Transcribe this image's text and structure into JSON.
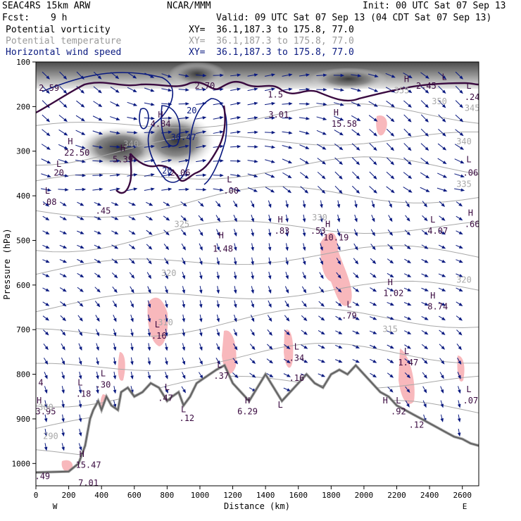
{
  "header": {
    "model": "SEAC4RS 15km ARW",
    "center": "NCAR/MMM",
    "init": "Init: 00 UTC Sat 07 Sep 13",
    "fcst_label": "Fcst:",
    "fcst_value": "9 h",
    "valid": "Valid: 09 UTC Sat 07 Sep 13 (04 CDT Sat 07 Sep 13)"
  },
  "fields": [
    {
      "name": "Potential vorticity",
      "xy": "XY=  36.1,187.3 to 175.8, 77.0",
      "color": "#000000"
    },
    {
      "name": "Potential temperature",
      "xy": "XY=  36.1,187.3 to 175.8, 77.0",
      "color": "#9a9a9a"
    },
    {
      "name": "Horizontal wind speed",
      "xy": "XY=  36.1,187.3 to 175.8, 77.0",
      "color": "#0a1a80"
    }
  ],
  "chart_data": {
    "type": "cross-section",
    "xlabel": "Distance (km)",
    "ylabel": "Pressure (hPa)",
    "x_ticks": [
      0,
      200,
      400,
      600,
      800,
      1000,
      1200,
      1400,
      1600,
      1800,
      2000,
      2200,
      2400,
      2600
    ],
    "y_ticks": [
      100,
      200,
      300,
      400,
      500,
      600,
      700,
      800,
      900,
      1000
    ],
    "xlim": [
      0,
      2700
    ],
    "ylim": [
      100,
      1050
    ],
    "x_end_labels": {
      "left": "W",
      "right": "E"
    },
    "colors": {
      "pv": "#3a0a40",
      "theta": "#a8a8a8",
      "wind": "#0a1a80",
      "pink": "#f8b8bc",
      "terrain": "#000000"
    },
    "theta_labels": [
      {
        "text": "355",
        "x": 2230,
        "p": 170
      },
      {
        "text": "350",
        "x": 2460,
        "p": 195
      },
      {
        "text": "345",
        "x": 2660,
        "p": 210
      },
      {
        "text": "340",
        "x": 2610,
        "p": 285
      },
      {
        "text": "335",
        "x": 2610,
        "p": 380
      },
      {
        "text": "330",
        "x": 1730,
        "p": 455
      },
      {
        "text": "325",
        "x": 890,
        "p": 470
      },
      {
        "text": "320",
        "x": 810,
        "p": 580
      },
      {
        "text": "320",
        "x": 2610,
        "p": 595
      },
      {
        "text": "315",
        "x": 2160,
        "p": 705
      },
      {
        "text": "310",
        "x": 790,
        "p": 690
      },
      {
        "text": "300",
        "x": 60,
        "p": 880
      },
      {
        "text": "290",
        "x": 90,
        "p": 945
      },
      {
        "text": "340",
        "x": 580,
        "p": 290
      }
    ],
    "pv_labels": [
      {
        "text": "2.59",
        "x": 80,
        "p": 165
      },
      {
        "text": "2.70",
        "x": 1030,
        "p": 160
      },
      {
        "text": "1.5",
        "x": 1460,
        "p": 180
      },
      {
        "text": "2.45",
        "x": 2380,
        "p": 160
      },
      {
        "text": "H",
        "x": 2260,
        "p": 145
      },
      {
        "text": "L",
        "x": 2490,
        "p": 140
      },
      {
        "text": ".24",
        "x": 2660,
        "p": 185
      },
      {
        "text": "L",
        "x": 2640,
        "p": 160
      },
      {
        "text": "H",
        "x": 1830,
        "p": 220
      },
      {
        "text": "15.58",
        "x": 1880,
        "p": 245
      },
      {
        "text": "3.01",
        "x": 1480,
        "p": 225
      },
      {
        "text": "4.84",
        "x": 760,
        "p": 245
      },
      {
        "text": "H",
        "x": 760,
        "p": 225
      },
      {
        "text": "5.39",
        "x": 530,
        "p": 325
      },
      {
        "text": "H",
        "x": 530,
        "p": 300
      },
      {
        "text": "22.50",
        "x": 250,
        "p": 310
      },
      {
        "text": "H",
        "x": 210,
        "p": 285
      },
      {
        "text": "20",
        "x": 140,
        "p": 355
      },
      {
        "text": "L",
        "x": 140,
        "p": 335
      },
      {
        "text": "2.06",
        "x": 880,
        "p": 355
      },
      {
        "text": "L",
        "x": 1180,
        "p": 370
      },
      {
        "text": ".00",
        "x": 1190,
        "p": 395
      },
      {
        "text": "L",
        "x": 70,
        "p": 395
      },
      {
        "text": ".08",
        "x": 80,
        "p": 420
      },
      {
        "text": ".45",
        "x": 410,
        "p": 440
      },
      {
        "text": "L",
        "x": 2640,
        "p": 325
      },
      {
        "text": ".06",
        "x": 2650,
        "p": 355
      },
      {
        "text": "H",
        "x": 1490,
        "p": 460
      },
      {
        "text": ".83",
        "x": 1500,
        "p": 485
      },
      {
        "text": ".53",
        "x": 1720,
        "p": 485
      },
      {
        "text": "H",
        "x": 1780,
        "p": 470
      },
      {
        "text": "10.19",
        "x": 1830,
        "p": 500
      },
      {
        "text": "H",
        "x": 1130,
        "p": 495
      },
      {
        "text": "1.48",
        "x": 1140,
        "p": 525
      },
      {
        "text": "L",
        "x": 2420,
        "p": 460
      },
      {
        "text": "4.07",
        "x": 2450,
        "p": 485
      },
      {
        "text": "H",
        "x": 2650,
        "p": 445
      },
      {
        "text": ".66",
        "x": 2660,
        "p": 470
      },
      {
        "text": "H",
        "x": 2160,
        "p": 600
      },
      {
        "text": "1.02",
        "x": 2180,
        "p": 625
      },
      {
        "text": "H",
        "x": 2420,
        "p": 630
      },
      {
        "text": "8.74",
        "x": 2450,
        "p": 655
      },
      {
        "text": "L",
        "x": 1910,
        "p": 650
      },
      {
        "text": ".79",
        "x": 1910,
        "p": 675
      },
      {
        "text": "L",
        "x": 740,
        "p": 695
      },
      {
        "text": ".16",
        "x": 750,
        "p": 720
      },
      {
        "text": "L",
        "x": 1590,
        "p": 745
      },
      {
        "text": ".34",
        "x": 1590,
        "p": 770
      },
      {
        "text": ".16",
        "x": 1590,
        "p": 815
      },
      {
        "text": "L",
        "x": 2260,
        "p": 755
      },
      {
        "text": "1.47",
        "x": 2270,
        "p": 780
      },
      {
        "text": "L",
        "x": 1120,
        "p": 785
      },
      {
        "text": ".37",
        "x": 1130,
        "p": 810
      },
      {
        "text": "L",
        "x": 410,
        "p": 805
      },
      {
        "text": ".30",
        "x": 410,
        "p": 830
      },
      {
        "text": "L",
        "x": 270,
        "p": 825
      },
      {
        "text": ".18",
        "x": 290,
        "p": 850
      },
      {
        "text": "L",
        "x": 800,
        "p": 835
      },
      {
        "text": ".47",
        "x": 790,
        "p": 860
      },
      {
        "text": "H",
        "x": 1290,
        "p": 865
      },
      {
        "text": "6.29",
        "x": 1290,
        "p": 890
      },
      {
        "text": "L",
        "x": 1490,
        "p": 875
      },
      {
        "text": "H",
        "x": 2130,
        "p": 865
      },
      {
        "text": "L",
        "x": 2210,
        "p": 865
      },
      {
        "text": ".92",
        "x": 2210,
        "p": 890
      },
      {
        "text": ".12",
        "x": 2320,
        "p": 920
      },
      {
        "text": "L",
        "x": 2640,
        "p": 840
      },
      {
        "text": ".07",
        "x": 2650,
        "p": 865
      },
      {
        "text": "L",
        "x": 900,
        "p": 885
      },
      {
        "text": ".12",
        "x": 920,
        "p": 905
      },
      {
        "text": "4",
        "x": 30,
        "p": 825
      },
      {
        "text": "H",
        "x": 20,
        "p": 865
      },
      {
        "text": "3.95",
        "x": 60,
        "p": 890
      },
      {
        "text": "H",
        "x": 280,
        "p": 985
      },
      {
        "text": "15.47",
        "x": 320,
        "p": 1010
      },
      {
        "text": ".49",
        "x": 40,
        "p": 1035
      },
      {
        "text": "7.01",
        "x": 320,
        "p": 1050
      }
    ],
    "wind_labels": [
      {
        "text": "20",
        "x": 950,
        "p": 215
      },
      {
        "text": "30.47",
        "x": 900,
        "p": 275
      },
      {
        "text": "20",
        "x": 800,
        "p": 350
      }
    ]
  },
  "axis_label_text": {
    "distance": "Distance (km)",
    "pressure": "Pressure (hPa)"
  }
}
